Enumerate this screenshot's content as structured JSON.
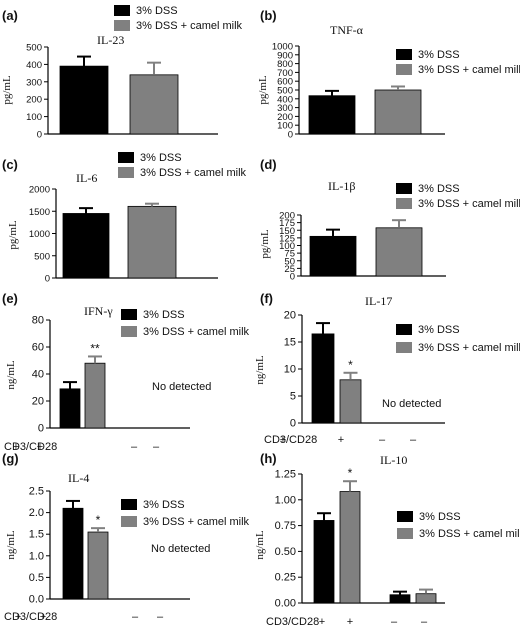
{
  "legend_labels": [
    "3% DSS",
    "3% DSS + camel milk"
  ],
  "series_colors": [
    "#000000",
    "#808080"
  ],
  "chart_data": [
    {
      "panel": "(a)",
      "type": "bar",
      "title": "IL-23",
      "ylabel": "pg/mL",
      "ylim": [
        0,
        500
      ],
      "yticks": [
        "0",
        "100",
        "200",
        "300",
        "400",
        "500"
      ],
      "categories": [
        "3% DSS",
        "3% DSS + camel milk"
      ],
      "values": [
        390,
        340
      ],
      "errors": [
        55,
        70
      ],
      "significance": [
        "",
        ""
      ]
    },
    {
      "panel": "(b)",
      "type": "bar",
      "title": "TNF-α",
      "ylabel": "pg/mL",
      "ylim": [
        0,
        1000
      ],
      "yticks": [
        "0",
        "100",
        "200",
        "300",
        "400",
        "500",
        "600",
        "700",
        "800",
        "900",
        "1000"
      ],
      "categories": [
        "3% DSS",
        "3% DSS + camel milk"
      ],
      "values": [
        435,
        500
      ],
      "errors": [
        55,
        40
      ],
      "significance": [
        "",
        ""
      ]
    },
    {
      "panel": "(c)",
      "type": "bar",
      "title": "IL-6",
      "ylabel": "pg/mL",
      "ylim": [
        0,
        2000
      ],
      "yticks": [
        "0",
        "500",
        "1000",
        "1500",
        "2000"
      ],
      "categories": [
        "3% DSS",
        "3% DSS + camel milk"
      ],
      "values": [
        1450,
        1610
      ],
      "errors": [
        120,
        60
      ],
      "significance": [
        "",
        ""
      ]
    },
    {
      "panel": "(d)",
      "type": "bar",
      "title": "IL-1β",
      "ylabel": "pg/mL",
      "ylim": [
        0,
        200
      ],
      "yticks": [
        "0",
        "25",
        "50",
        "75",
        "100",
        "125",
        "150",
        "175",
        "200"
      ],
      "categories": [
        "3% DSS",
        "3% DSS + camel milk"
      ],
      "values": [
        130,
        158
      ],
      "errors": [
        22,
        25
      ],
      "significance": [
        "",
        ""
      ]
    },
    {
      "panel": "(e)",
      "type": "bar",
      "title": "IFN-γ",
      "ylabel": "ng/mL",
      "ylim": [
        0,
        80
      ],
      "yticks": [
        "0",
        "20",
        "40",
        "60",
        "80"
      ],
      "categories": [
        "3% DSS",
        "3% DSS + camel milk"
      ],
      "values": [
        29,
        48
      ],
      "errors": [
        5,
        5
      ],
      "significance": [
        "",
        "**"
      ],
      "cd_label": "CD3/CD28",
      "stim": [
        "+",
        "+",
        "–",
        "–"
      ],
      "note": "No detected"
    },
    {
      "panel": "(f)",
      "type": "bar",
      "title": "IL-17",
      "ylabel": "ng/mL",
      "ylim": [
        0,
        20
      ],
      "yticks": [
        "0",
        "5",
        "10",
        "15",
        "20"
      ],
      "categories": [
        "3% DSS",
        "3% DSS + camel milk"
      ],
      "values": [
        16.5,
        8.0
      ],
      "errors": [
        2.0,
        1.3
      ],
      "significance": [
        "",
        "*"
      ],
      "cd_label": "CD3/CD28",
      "stim": [
        "+",
        "+",
        "–",
        "–"
      ],
      "note": "No detected"
    },
    {
      "panel": "(g)",
      "type": "bar",
      "title": "IL-4",
      "ylabel": "ng/mL",
      "ylim": [
        0,
        2.5
      ],
      "yticks": [
        "0.0",
        "0.5",
        "1.0",
        "1.5",
        "2.0",
        "2.5"
      ],
      "categories": [
        "3% DSS",
        "3% DSS + camel milk"
      ],
      "values": [
        2.1,
        1.55
      ],
      "errors": [
        0.17,
        0.09
      ],
      "significance": [
        "",
        "*"
      ],
      "cd_label": "CD3/CD28",
      "stim": [
        "+",
        "+",
        "–",
        "–"
      ],
      "note": "No detected"
    },
    {
      "panel": "(h)",
      "type": "bar",
      "title": "IL-10",
      "ylabel": "ng/mL",
      "ylim": [
        0,
        1.25
      ],
      "yticks": [
        "0.00",
        "0.25",
        "0.50",
        "0.75",
        "1.00",
        "1.25"
      ],
      "categories": [
        "3% DSS",
        "3% DSS + camel milk",
        "3% DSS",
        "3% DSS + camel milk"
      ],
      "values": [
        0.8,
        1.08,
        0.08,
        0.09
      ],
      "errors": [
        0.07,
        0.1,
        0.03,
        0.04
      ],
      "significance": [
        "",
        "*",
        "",
        ""
      ],
      "cd_label": "CD3/CD28",
      "stim": [
        "+",
        "+",
        "–",
        "–"
      ],
      "note": ""
    }
  ]
}
